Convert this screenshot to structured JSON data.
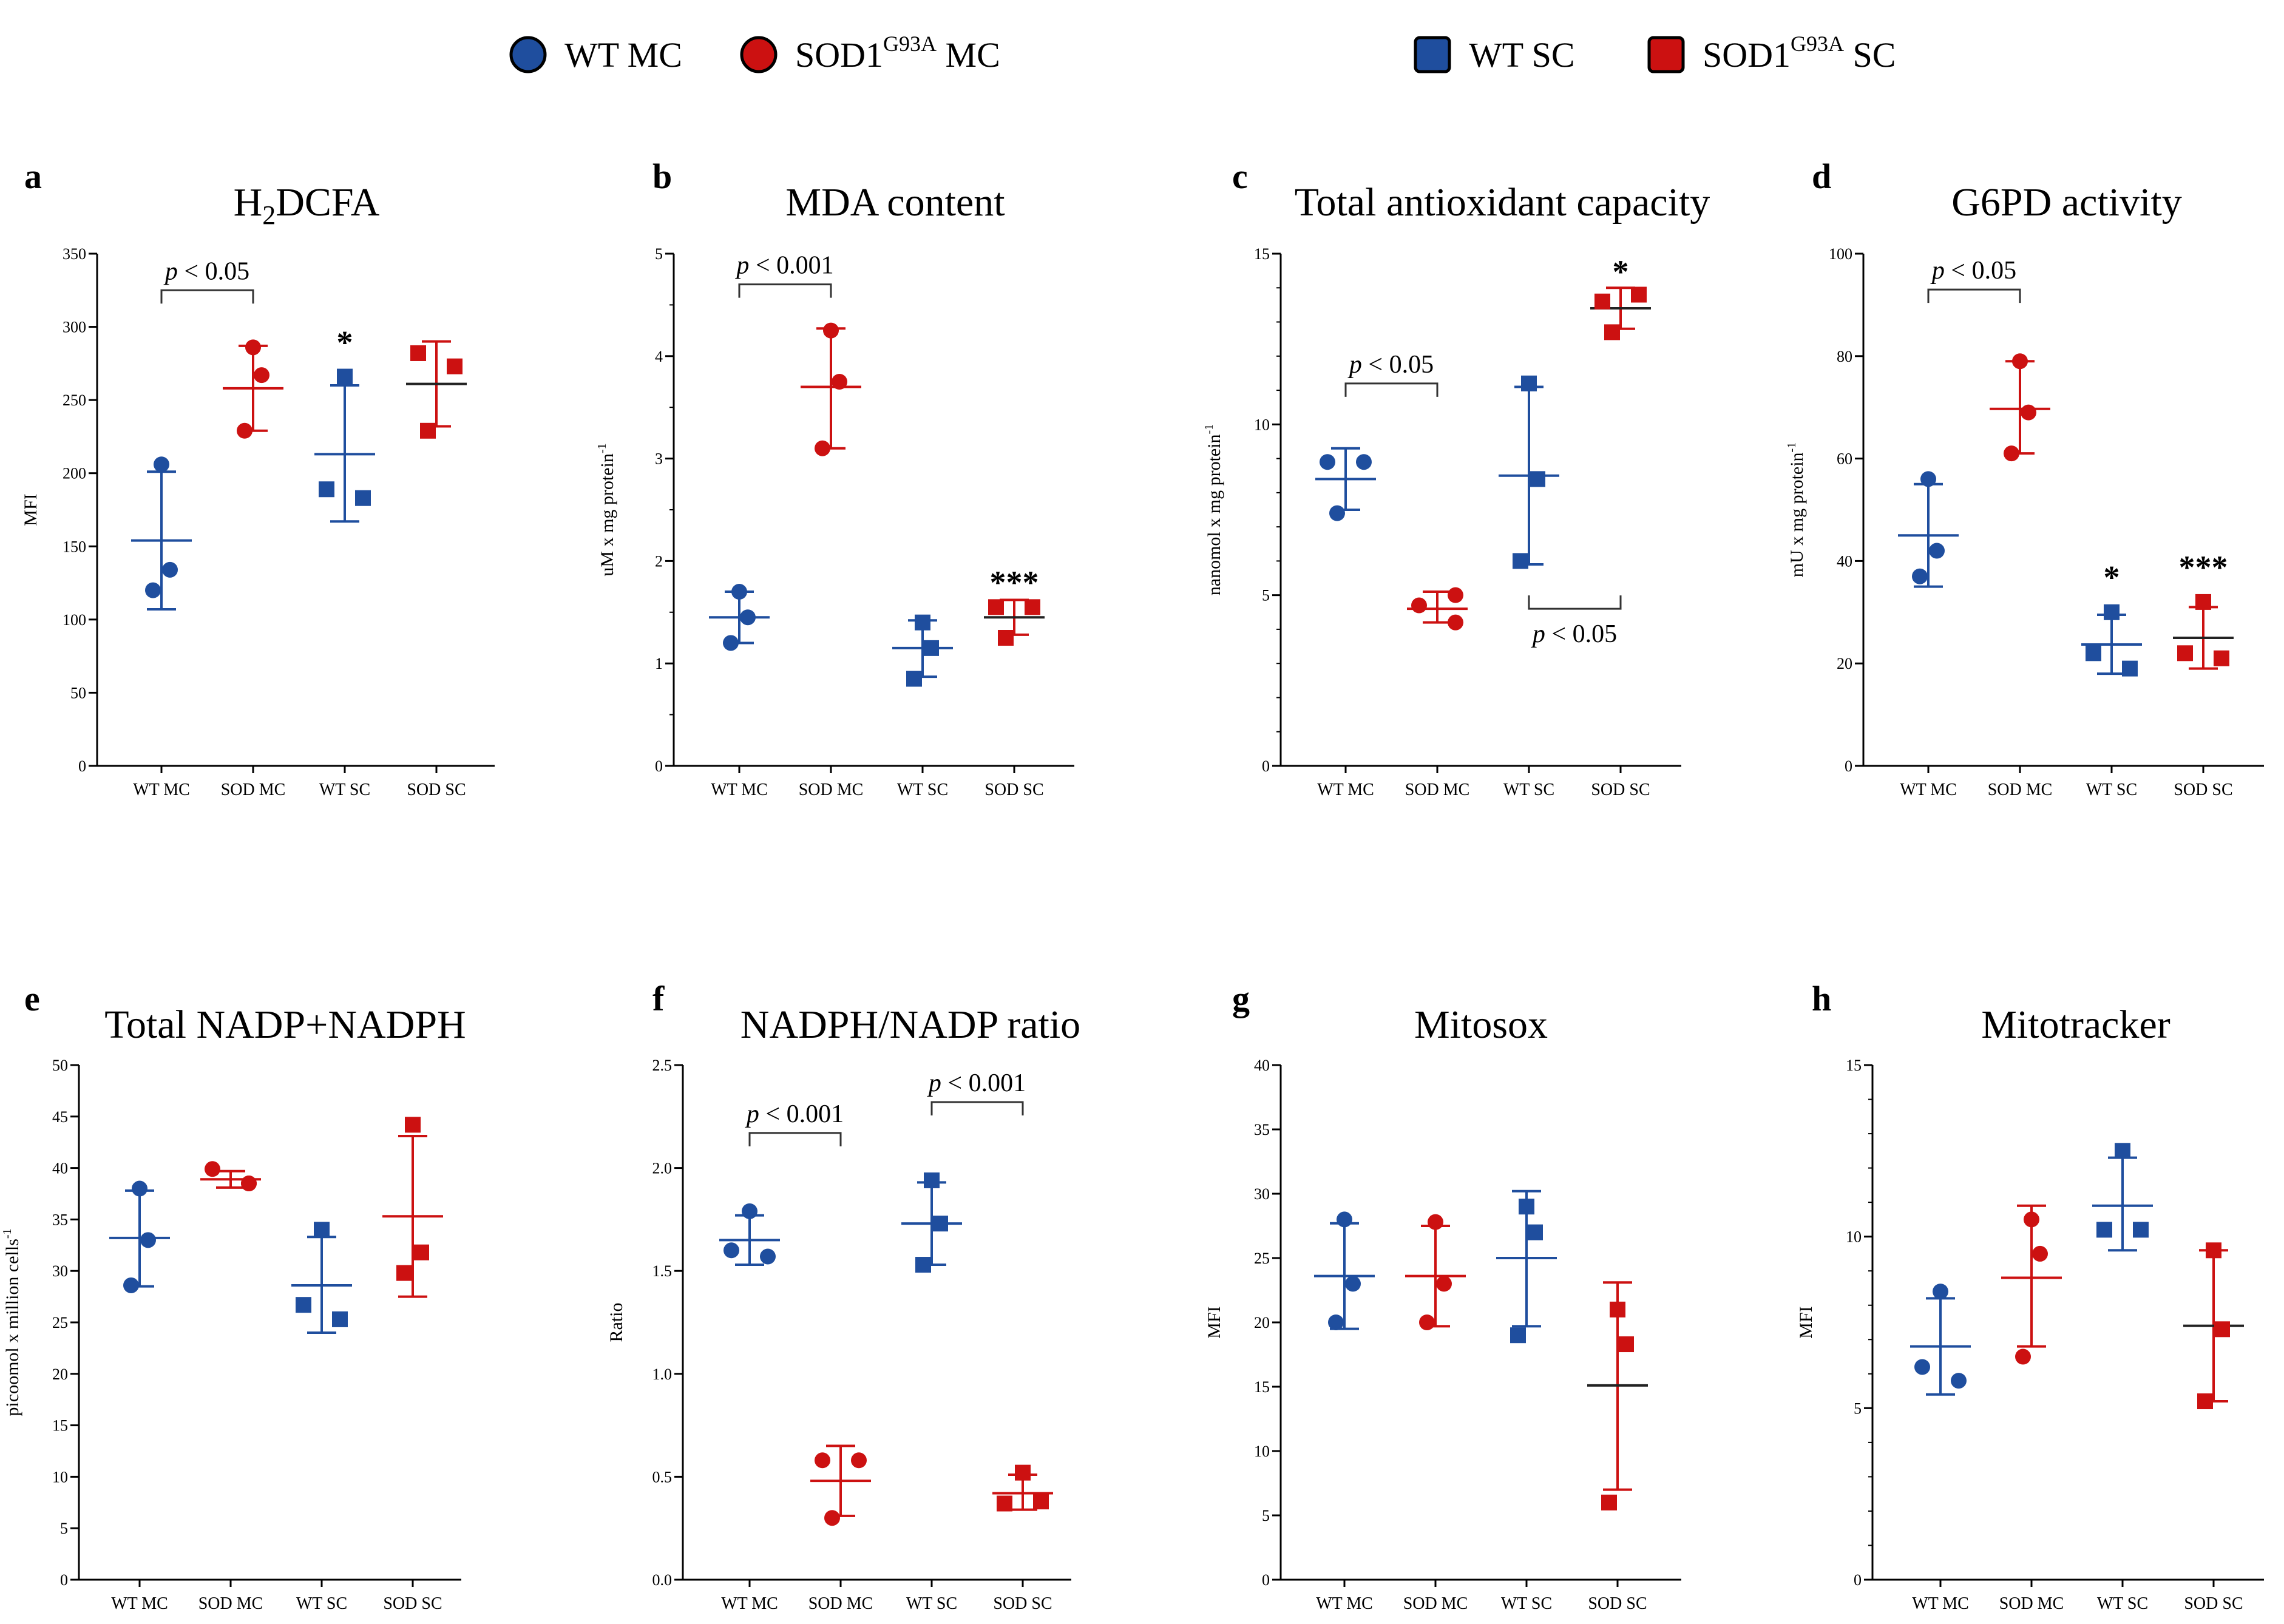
{
  "colors": {
    "wt": "#1f4e9e",
    "sod": "#cc1111",
    "axis": "#000000",
    "bracket": "#333333"
  },
  "legend": [
    {
      "marker": "circle",
      "color": "#1f4e9e",
      "label": "WT MC",
      "sup": ""
    },
    {
      "marker": "circle",
      "color": "#cc1111",
      "label_pre": "SOD1",
      "sup": "G93A",
      "label_post": "MC"
    },
    {
      "marker": "square",
      "color": "#1f4e9e",
      "label": "WT SC",
      "sup": ""
    },
    {
      "marker": "square",
      "color": "#cc1111",
      "label_pre": "SOD1",
      "sup": "G93A",
      "label_post": "SC"
    }
  ],
  "chart_data": [
    {
      "panel": "a",
      "type": "scatter",
      "title": "H₂DCFA",
      "title_main": "H",
      "title_sub": "2",
      "title_rest": "DCFA",
      "ylabel": "MFI",
      "ylabel_sup": "",
      "ylim": [
        0,
        350
      ],
      "yticks": [
        0,
        50,
        100,
        150,
        200,
        250,
        300,
        350
      ],
      "categories": [
        "WT MC",
        "SOD MC",
        "WT SC",
        "SOD SC"
      ],
      "series": [
        {
          "name": "WT MC",
          "marker": "circle",
          "color": "#1f4e9e",
          "points": [
            206,
            134,
            120
          ],
          "mean": 154,
          "sd_low": 107,
          "sd_high": 201
        },
        {
          "name": "SOD MC",
          "marker": "circle",
          "color": "#cc1111",
          "points": [
            286,
            267,
            229
          ],
          "mean": 258,
          "sd_low": 229,
          "sd_high": 287
        },
        {
          "name": "WT SC",
          "marker": "square",
          "color": "#1f4e9e",
          "points": [
            266,
            189,
            183
          ],
          "mean": 213,
          "sd_low": 167,
          "sd_high": 260
        },
        {
          "name": "SOD SC",
          "marker": "square",
          "color": "#cc1111",
          "points": [
            282,
            273,
            229
          ],
          "mean": 261,
          "sd_low": 232,
          "sd_high": 290
        }
      ],
      "brackets": [
        {
          "from": 0,
          "to": 1,
          "y": 325,
          "label_pre": "p",
          "label": " < 0.05",
          "side": "top"
        }
      ],
      "stars": [
        {
          "category": 2,
          "text": "*",
          "y": 290
        }
      ]
    },
    {
      "panel": "b",
      "type": "scatter",
      "title": "MDA content",
      "ylabel": "uM x mg protein",
      "ylabel_sup": "-1",
      "ylim": [
        0,
        5
      ],
      "yticks": [
        0,
        1,
        2,
        3,
        4,
        5
      ],
      "categories": [
        "WT MC",
        "SOD MC",
        "WT SC",
        "SOD SC"
      ],
      "series": [
        {
          "name": "WT MC",
          "marker": "circle",
          "color": "#1f4e9e",
          "points": [
            1.7,
            1.45,
            1.2
          ],
          "mean": 1.45,
          "sd_low": 1.2,
          "sd_high": 1.7
        },
        {
          "name": "SOD MC",
          "marker": "circle",
          "color": "#cc1111",
          "points": [
            4.25,
            3.75,
            3.1
          ],
          "mean": 3.7,
          "sd_low": 3.1,
          "sd_high": 4.27
        },
        {
          "name": "WT SC",
          "marker": "square",
          "color": "#1f4e9e",
          "points": [
            1.4,
            1.15,
            0.85
          ],
          "mean": 1.15,
          "sd_low": 0.87,
          "sd_high": 1.42
        },
        {
          "name": "SOD SC",
          "marker": "square",
          "color": "#cc1111",
          "points": [
            1.55,
            1.55,
            1.25
          ],
          "mean": 1.45,
          "sd_low": 1.28,
          "sd_high": 1.62
        }
      ],
      "brackets": [
        {
          "from": 0,
          "to": 1,
          "y": 4.7,
          "label_pre": "p",
          "label": " < 0.001",
          "side": "top"
        }
      ],
      "stars": [
        {
          "category": 3,
          "text": "***",
          "y": 1.8
        }
      ]
    },
    {
      "panel": "c",
      "type": "scatter",
      "title": "Total antioxidant capacity",
      "ylabel": "nanomol x mg protein",
      "ylabel_sup": "-1",
      "ylim": [
        0,
        15
      ],
      "yticks": [
        0,
        5,
        10,
        15
      ],
      "categories": [
        "WT MC",
        "SOD MC",
        "WT SC",
        "SOD SC"
      ],
      "series": [
        {
          "name": "WT MC",
          "marker": "circle",
          "color": "#1f4e9e",
          "points": [
            8.9,
            8.9,
            7.4
          ],
          "mean": 8.4,
          "sd_low": 7.5,
          "sd_high": 9.3
        },
        {
          "name": "SOD MC",
          "marker": "circle",
          "color": "#cc1111",
          "points": [
            4.7,
            5.0,
            4.2
          ],
          "mean": 4.6,
          "sd_low": 4.2,
          "sd_high": 5.1
        },
        {
          "name": "WT SC",
          "marker": "square",
          "color": "#1f4e9e",
          "points": [
            11.2,
            8.4,
            6.0
          ],
          "mean": 8.5,
          "sd_low": 5.9,
          "sd_high": 11.1
        },
        {
          "name": "SOD SC",
          "marker": "square",
          "color": "#cc1111",
          "points": [
            13.6,
            13.8,
            12.7
          ],
          "mean": 13.4,
          "sd_low": 12.8,
          "sd_high": 14.0
        }
      ],
      "brackets": [
        {
          "from": 0,
          "to": 1,
          "y": 11.2,
          "label_pre": "p",
          "label": " < 0.05",
          "side": "top"
        },
        {
          "from": 2,
          "to": 3,
          "y": 4.6,
          "label_pre": "p",
          "label": " < 0.05",
          "side": "bottom"
        }
      ],
      "stars": [
        {
          "category": 3,
          "text": "*",
          "y": 14.5
        }
      ]
    },
    {
      "panel": "d",
      "type": "scatter",
      "title": "G6PD activity",
      "ylabel": "mU x mg protein",
      "ylabel_sup": "-1",
      "ylim": [
        0,
        100
      ],
      "yticks": [
        0,
        20,
        40,
        60,
        80,
        100
      ],
      "categories": [
        "WT MC",
        "SOD MC",
        "WT SC",
        "SOD SC"
      ],
      "series": [
        {
          "name": "WT MC",
          "marker": "circle",
          "color": "#1f4e9e",
          "points": [
            56,
            42,
            37
          ],
          "mean": 45,
          "sd_low": 35,
          "sd_high": 55
        },
        {
          "name": "SOD MC",
          "marker": "circle",
          "color": "#cc1111",
          "points": [
            79,
            69,
            61
          ],
          "mean": 69.7,
          "sd_low": 61,
          "sd_high": 79
        },
        {
          "name": "WT SC",
          "marker": "square",
          "color": "#1f4e9e",
          "points": [
            30,
            22,
            19
          ],
          "mean": 23.7,
          "sd_low": 18,
          "sd_high": 29.5
        },
        {
          "name": "SOD SC",
          "marker": "square",
          "color": "#cc1111",
          "points": [
            32,
            22,
            21
          ],
          "mean": 25,
          "sd_low": 19,
          "sd_high": 31
        }
      ],
      "brackets": [
        {
          "from": 0,
          "to": 1,
          "y": 93,
          "label_pre": "p",
          "label": " < 0.05",
          "side": "top"
        }
      ],
      "stars": [
        {
          "category": 2,
          "text": "*",
          "y": 37
        },
        {
          "category": 3,
          "text": "***",
          "y": 39
        }
      ]
    },
    {
      "panel": "e",
      "type": "scatter",
      "title": "Total NADP+NADPH",
      "ylabel": "picoomol x million cells",
      "ylabel_sup": "-1",
      "ylim": [
        0,
        50
      ],
      "yticks": [
        0,
        5,
        10,
        15,
        20,
        25,
        30,
        35,
        40,
        45,
        50
      ],
      "categories": [
        "WT MC",
        "SOD MC",
        "WT SC",
        "SOD SC"
      ],
      "series": [
        {
          "name": "WT MC",
          "marker": "circle",
          "color": "#1f4e9e",
          "points": [
            38,
            33,
            28.6
          ],
          "mean": 33.2,
          "sd_low": 28.5,
          "sd_high": 37.8
        },
        {
          "name": "SOD MC",
          "marker": "circle",
          "color": "#cc1111",
          "points": [
            39.9,
            38.5,
            38.5
          ],
          "mean": 38.9,
          "sd_low": 38.1,
          "sd_high": 39.7
        },
        {
          "name": "WT SC",
          "marker": "square",
          "color": "#1f4e9e",
          "points": [
            34,
            26.7,
            25.3
          ],
          "mean": 28.6,
          "sd_low": 24,
          "sd_high": 33.3
        },
        {
          "name": "SOD SC",
          "marker": "square",
          "color": "#cc1111",
          "points": [
            44.2,
            31.8,
            29.8
          ],
          "mean": 35.3,
          "sd_low": 27.5,
          "sd_high": 43.1
        }
      ],
      "brackets": [],
      "stars": []
    },
    {
      "panel": "f",
      "type": "scatter",
      "title": "NADPH/NADP ratio",
      "ylabel": "Ratio",
      "ylabel_sup": "",
      "ylim": [
        0,
        2.5
      ],
      "yticks": [
        0.0,
        0.5,
        1.0,
        1.5,
        2.0,
        2.5
      ],
      "categories": [
        "WT MC",
        "SOD MC",
        "WT SC",
        "SOD SC"
      ],
      "series": [
        {
          "name": "WT MC",
          "marker": "circle",
          "color": "#1f4e9e",
          "points": [
            1.79,
            1.6,
            1.57
          ],
          "mean": 1.65,
          "sd_low": 1.53,
          "sd_high": 1.77
        },
        {
          "name": "SOD MC",
          "marker": "circle",
          "color": "#cc1111",
          "points": [
            0.58,
            0.58,
            0.3
          ],
          "mean": 0.48,
          "sd_low": 0.31,
          "sd_high": 0.65
        },
        {
          "name": "WT SC",
          "marker": "square",
          "color": "#1f4e9e",
          "points": [
            1.94,
            1.73,
            1.53
          ],
          "mean": 1.73,
          "sd_low": 1.53,
          "sd_high": 1.93
        },
        {
          "name": "SOD SC",
          "marker": "square",
          "color": "#cc1111",
          "points": [
            0.52,
            0.37,
            0.38
          ],
          "mean": 0.42,
          "sd_low": 0.34,
          "sd_high": 0.51
        }
      ],
      "brackets": [
        {
          "from": 0,
          "to": 1,
          "y": 2.17,
          "label_pre": "p",
          "label": " < 0.001",
          "side": "top"
        },
        {
          "from": 2,
          "to": 3,
          "y": 2.32,
          "label_pre": "p",
          "label": " < 0.001",
          "side": "top"
        }
      ],
      "stars": []
    },
    {
      "panel": "g",
      "type": "scatter",
      "title": "Mitosox",
      "ylabel": "MFI",
      "ylabel_sup": "",
      "ylim": [
        0,
        40
      ],
      "yticks": [
        0,
        5,
        10,
        15,
        20,
        25,
        30,
        35,
        40
      ],
      "categories": [
        "WT MC",
        "SOD MC",
        "WT SC",
        "SOD SC"
      ],
      "series": [
        {
          "name": "WT MC",
          "marker": "circle",
          "color": "#1f4e9e",
          "points": [
            28,
            23,
            20
          ],
          "mean": 23.6,
          "sd_low": 19.5,
          "sd_high": 27.7
        },
        {
          "name": "SOD MC",
          "marker": "circle",
          "color": "#cc1111",
          "points": [
            27.8,
            23,
            20
          ],
          "mean": 23.6,
          "sd_low": 19.7,
          "sd_high": 27.5
        },
        {
          "name": "WT SC",
          "marker": "square",
          "color": "#1f4e9e",
          "points": [
            29,
            27,
            19
          ],
          "mean": 25,
          "sd_low": 19.7,
          "sd_high": 30.2
        },
        {
          "name": "SOD SC",
          "marker": "square",
          "color": "#cc1111",
          "points": [
            21,
            18.3,
            6
          ],
          "mean": 15.1,
          "sd_low": 7,
          "sd_high": 23.1
        }
      ],
      "brackets": [],
      "stars": []
    },
    {
      "panel": "h",
      "type": "scatter",
      "title": "Mitotracker",
      "ylabel": "MFI",
      "ylabel_sup": "",
      "ylim": [
        0,
        15
      ],
      "yticks": [
        0,
        5,
        10,
        15
      ],
      "categories": [
        "WT MC",
        "SOD MC",
        "WT SC",
        "SOD SC"
      ],
      "series": [
        {
          "name": "WT MC",
          "marker": "circle",
          "color": "#1f4e9e",
          "points": [
            8.4,
            6.2,
            5.8
          ],
          "mean": 6.8,
          "sd_low": 5.4,
          "sd_high": 8.2
        },
        {
          "name": "SOD MC",
          "marker": "circle",
          "color": "#cc1111",
          "points": [
            10.5,
            9.5,
            6.5
          ],
          "mean": 8.8,
          "sd_low": 6.8,
          "sd_high": 10.9
        },
        {
          "name": "WT SC",
          "marker": "square",
          "color": "#1f4e9e",
          "points": [
            12.5,
            10.2,
            10.2
          ],
          "mean": 10.9,
          "sd_low": 9.6,
          "sd_high": 12.3
        },
        {
          "name": "SOD SC",
          "marker": "square",
          "color": "#cc1111",
          "points": [
            9.6,
            7.3,
            5.2
          ],
          "mean": 7.4,
          "sd_low": 5.2,
          "sd_high": 9.6
        }
      ],
      "brackets": [],
      "stars": []
    }
  ]
}
